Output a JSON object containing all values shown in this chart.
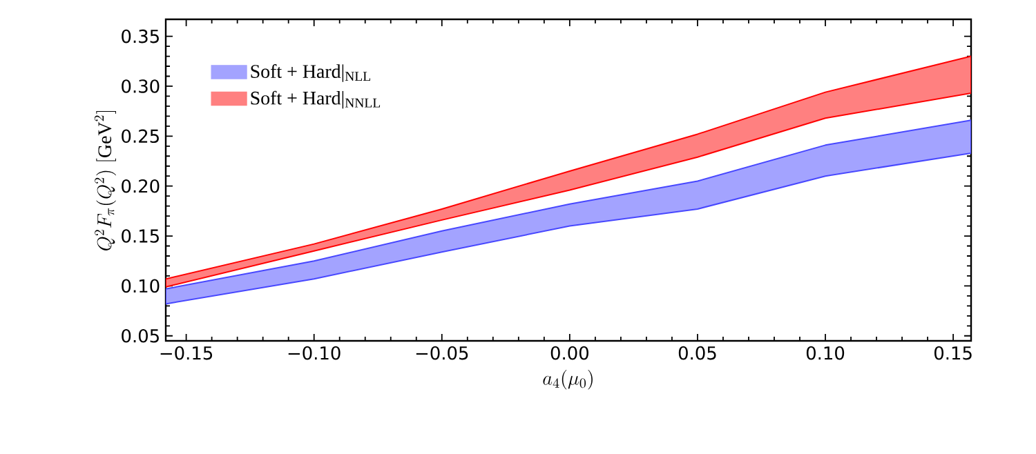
{
  "chart_data": {
    "type": "area",
    "xlabel": "a_4(\\mu_0)",
    "ylabel": "Q^2F_\\pi(Q^2)\\;[\\mathrm{GeV}^2]",
    "x": [
      -0.158,
      -0.1,
      -0.05,
      0.0,
      0.05,
      0.1,
      0.157
    ],
    "series": [
      {
        "name": "Soft + Hard|$_{NLL}$",
        "color": "#a3a3ff",
        "values": [
          null,
          null,
          null,
          null,
          null,
          null,
          null
        ],
        "lower": [
          0.082,
          0.107,
          0.134,
          0.16,
          0.177,
          0.21,
          0.233
        ],
        "upper": [
          0.097,
          0.125,
          0.155,
          0.182,
          0.205,
          0.241,
          0.266
        ]
      },
      {
        "name": "Soft + Hard|$_{NNLL}$",
        "color": "#ff8080",
        "values": [
          null,
          null,
          null,
          null,
          null,
          null,
          null
        ],
        "lower": [
          0.099,
          0.135,
          0.166,
          0.196,
          0.229,
          0.268,
          0.293
        ],
        "upper": [
          0.107,
          0.142,
          0.177,
          0.215,
          0.252,
          0.294,
          0.33
        ]
      }
    ],
    "xlim": [
      -0.158,
      0.157
    ],
    "ylim": [
      0.045,
      0.367
    ],
    "xticks": [
      {
        "value": -0.15,
        "label": "−0.15"
      },
      {
        "value": -0.1,
        "label": "−0.10"
      },
      {
        "value": -0.05,
        "label": "−0.05"
      },
      {
        "value": 0,
        "label": "0.00"
      },
      {
        "value": 0.05,
        "label": "0.05"
      },
      {
        "value": 0.1,
        "label": "0.10"
      },
      {
        "value": 0.15,
        "label": "0.15"
      }
    ],
    "yticks": [
      {
        "value": 0.05,
        "label": "0.05"
      },
      {
        "value": 0.1,
        "label": "0.10"
      },
      {
        "value": 0.15,
        "label": "0.15"
      },
      {
        "value": 0.2,
        "label": "0.20"
      },
      {
        "value": 0.25,
        "label": "0.25"
      },
      {
        "value": 0.3,
        "label": "0.30"
      },
      {
        "value": 0.35,
        "label": "0.35"
      }
    ],
    "legend": "top left",
    "grid": false
  }
}
